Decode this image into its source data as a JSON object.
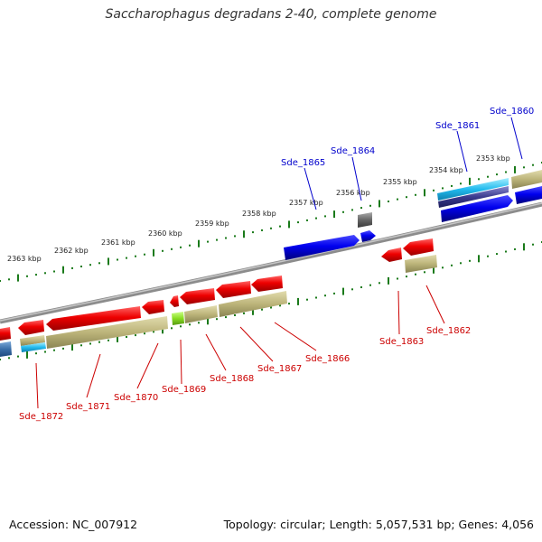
{
  "title": "Saccharophagus degradans 2-40, complete genome",
  "footer": {
    "accession": "Accession: NC_007912",
    "summary": "Topology: circular; Length: 5,057,531 bp; Genes: 4,056"
  },
  "colors": {
    "backbone": "#808080",
    "tick": "#1a7a1a",
    "label_forward": "#0000cc",
    "label_reverse": "#cc0000",
    "tick_label": "#222222"
  },
  "kbp_labels": [
    "2353 kbp",
    "2354 kbp",
    "2355 kbp",
    "2356 kbp",
    "2357 kbp",
    "2358 kbp",
    "2359 kbp",
    "2360 kbp",
    "2361 kbp",
    "2362 kbp",
    "2363 kbp"
  ],
  "genes": [
    {
      "name": "Sde_1860",
      "strand": "forward"
    },
    {
      "name": "Sde_1861",
      "strand": "forward"
    },
    {
      "name": "Sde_1862",
      "strand": "reverse"
    },
    {
      "name": "Sde_1863",
      "strand": "reverse"
    },
    {
      "name": "Sde_1864",
      "strand": "forward"
    },
    {
      "name": "Sde_1865",
      "strand": "forward"
    },
    {
      "name": "Sde_1866",
      "strand": "reverse"
    },
    {
      "name": "Sde_1867",
      "strand": "reverse"
    },
    {
      "name": "Sde_1868",
      "strand": "reverse"
    },
    {
      "name": "Sde_1869",
      "strand": "reverse"
    },
    {
      "name": "Sde_1870",
      "strand": "reverse"
    },
    {
      "name": "Sde_1871",
      "strand": "reverse"
    },
    {
      "name": "Sde_1872",
      "strand": "reverse"
    }
  ]
}
